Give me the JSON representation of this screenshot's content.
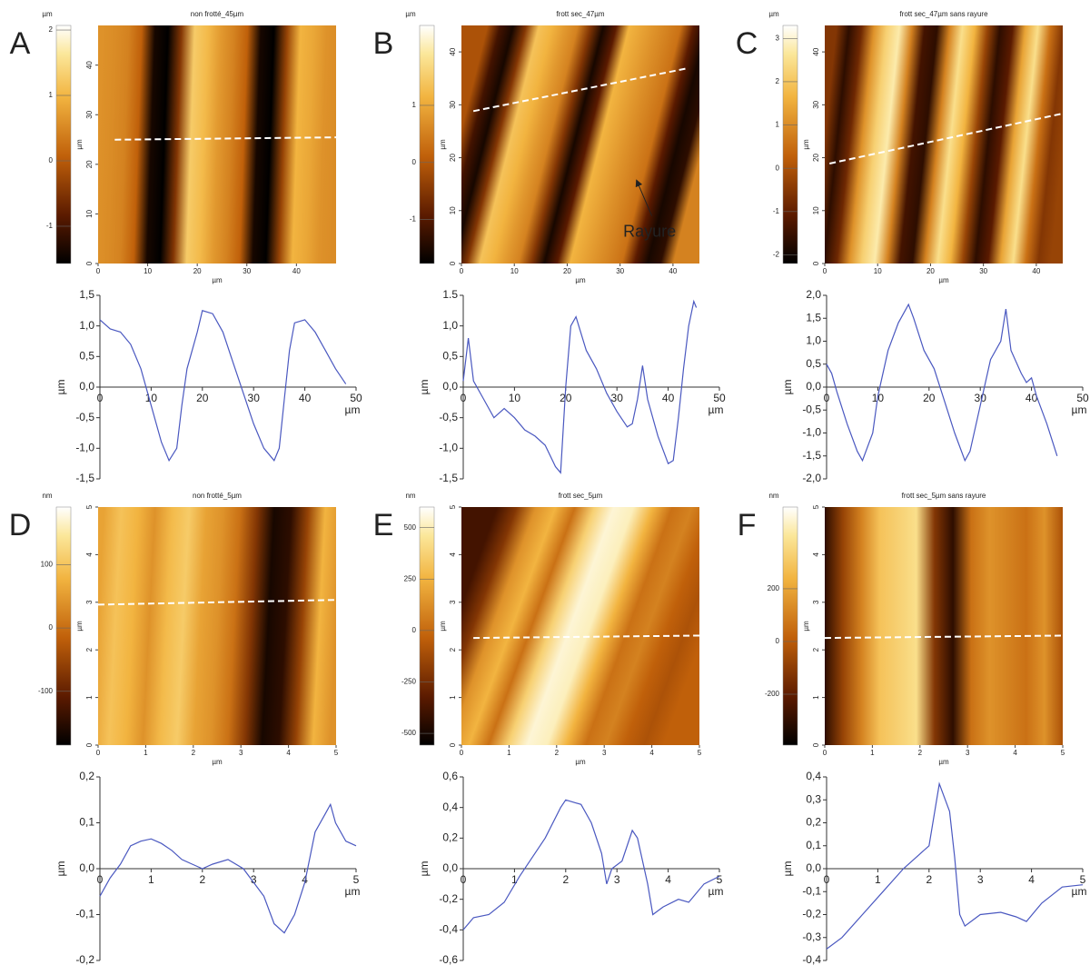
{
  "chart_data": [
    {
      "type": "image",
      "label": "A",
      "title": "non frotté_45µm",
      "unit": "µm",
      "clim": [
        -1.57,
        2.07
      ],
      "cticks": [
        2,
        1,
        0,
        -1
      ],
      "xlim": [
        0,
        48
      ],
      "ylim": [
        0,
        48
      ],
      "xticks": [
        0,
        10,
        20,
        30,
        40
      ],
      "yticks": [
        0,
        10,
        20,
        30,
        40
      ],
      "xlabel": "µm",
      "ylabel": "µm"
    },
    {
      "type": "line",
      "xlim": [
        0,
        50
      ],
      "ylim": [
        -1.5,
        1.5
      ],
      "xticks": [
        0,
        10,
        20,
        30,
        40,
        50
      ],
      "yticks": [
        {
          "value": 1.5,
          "label": "1,5"
        },
        {
          "value": 1.0,
          "label": "1,0"
        },
        {
          "value": 0.5,
          "label": "0,5"
        },
        {
          "value": 0.0,
          "label": "0,0"
        },
        {
          "value": -0.5,
          "label": "-0,5"
        },
        {
          "value": -1.0,
          "label": "-1,0"
        },
        {
          "value": -1.5,
          "label": "-1,5"
        }
      ],
      "xlabel": "µm",
      "ylabel": "µm",
      "x": [
        0,
        2,
        4,
        6,
        8,
        10,
        12,
        13.5,
        15,
        16,
        17,
        19,
        20,
        22,
        24,
        26,
        28,
        30,
        32,
        34,
        35,
        36,
        37,
        38,
        40,
        42,
        44,
        46,
        48
      ],
      "series": [
        {
          "color": "#4a58c0",
          "values": [
            1.1,
            0.95,
            0.9,
            0.7,
            0.3,
            -0.3,
            -0.9,
            -1.2,
            -1.0,
            -0.3,
            0.3,
            0.9,
            1.25,
            1.2,
            0.9,
            0.4,
            -0.1,
            -0.6,
            -1.0,
            -1.2,
            -1.0,
            -0.2,
            0.6,
            1.05,
            1.1,
            0.9,
            0.6,
            0.3,
            0.05
          ]
        }
      ]
    },
    {
      "type": "image",
      "label": "B",
      "title": "frott sec_47µm",
      "unit": "µm",
      "clim": [
        -1.77,
        2.4
      ],
      "cticks": [
        1,
        0,
        -1
      ],
      "xlim": [
        0,
        45
      ],
      "ylim": [
        0,
        45
      ],
      "xticks": [
        0,
        10,
        20,
        30,
        40
      ],
      "yticks": [
        0,
        10,
        20,
        30,
        40
      ],
      "xlabel": "µm",
      "ylabel": "µm",
      "annotation": "Rayure"
    },
    {
      "type": "line",
      "xlim": [
        0,
        50
      ],
      "ylim": [
        -1.5,
        1.5
      ],
      "xticks": [
        0,
        10,
        20,
        30,
        40,
        50
      ],
      "yticks": [
        {
          "value": 1.5,
          "label": "1.5"
        },
        {
          "value": 1.0,
          "label": "1,0"
        },
        {
          "value": 0.5,
          "label": "0,5"
        },
        {
          "value": 0.0,
          "label": "0,0"
        },
        {
          "value": -0.5,
          "label": "-0,5"
        },
        {
          "value": -1.0,
          "label": "-1,0"
        },
        {
          "value": -1.5,
          "label": "-1,5"
        }
      ],
      "xlabel": "µm",
      "ylabel": "µm",
      "x": [
        0,
        1,
        2,
        4,
        6,
        8,
        10,
        12,
        14,
        16,
        18,
        19,
        20,
        21,
        22,
        24,
        26,
        28,
        30,
        32,
        33,
        34,
        35,
        36,
        38,
        40,
        41,
        42,
        43,
        44,
        45,
        45.5
      ],
      "series": [
        {
          "color": "#4a58c0",
          "values": [
            0.1,
            0.8,
            0.1,
            -0.2,
            -0.5,
            -0.35,
            -0.5,
            -0.7,
            -0.8,
            -0.95,
            -1.3,
            -1.4,
            0,
            1.0,
            1.15,
            0.6,
            0.3,
            -0.1,
            -0.4,
            -0.65,
            -0.6,
            -0.2,
            0.35,
            -0.2,
            -0.8,
            -1.25,
            -1.2,
            -0.5,
            0.3,
            1.0,
            1.4,
            1.3
          ]
        }
      ]
    },
    {
      "type": "image",
      "label": "C",
      "title": "frott sec_47µm sans rayure",
      "unit": "µm",
      "clim": [
        -2.2,
        3.3
      ],
      "cticks": [
        3,
        2,
        1,
        0,
        -1,
        -2
      ],
      "xlim": [
        0,
        45
      ],
      "ylim": [
        0,
        45
      ],
      "xticks": [
        0,
        10,
        20,
        30,
        40
      ],
      "yticks": [
        0,
        10,
        20,
        30,
        40
      ],
      "xlabel": "µm",
      "ylabel": "µm"
    },
    {
      "type": "line",
      "xlim": [
        0,
        50
      ],
      "ylim": [
        -2.0,
        2.0
      ],
      "xticks": [
        0,
        10,
        20,
        30,
        40,
        50
      ],
      "yticks": [
        {
          "value": 2.0,
          "label": "2,0"
        },
        {
          "value": 1.5,
          "label": "1,5"
        },
        {
          "value": 1.0,
          "label": "1,0"
        },
        {
          "value": 0.5,
          "label": "0,5"
        },
        {
          "value": 0.0,
          "label": "0,0"
        },
        {
          "value": -0.5,
          "label": "-0,5"
        },
        {
          "value": -1.0,
          "label": "-1,0"
        },
        {
          "value": -1.5,
          "label": "-1,5"
        },
        {
          "value": -2.0,
          "label": "-2,0"
        }
      ],
      "xlabel": "µm",
      "ylabel": "µm",
      "x": [
        0,
        1,
        2,
        4,
        6,
        7,
        9,
        10,
        12,
        14,
        16,
        17,
        19,
        21,
        23,
        25,
        27,
        28,
        30,
        32,
        34,
        35,
        36,
        38,
        39,
        40,
        41,
        43,
        45
      ],
      "series": [
        {
          "color": "#4a58c0",
          "values": [
            0.5,
            0.3,
            -0.1,
            -0.8,
            -1.4,
            -1.6,
            -1.0,
            -0.2,
            0.8,
            1.4,
            1.8,
            1.5,
            0.8,
            0.4,
            -0.3,
            -1.0,
            -1.6,
            -1.4,
            -0.4,
            0.6,
            1.0,
            1.7,
            0.8,
            0.3,
            0.1,
            0.2,
            -0.2,
            -0.8,
            -1.5
          ]
        }
      ]
    },
    {
      "type": "image",
      "label": "D",
      "title": "non frotté_5µm",
      "unit": "nm",
      "clim": [
        -185,
        191
      ],
      "cticks": [
        100,
        0,
        -100
      ],
      "xlim": [
        0,
        5
      ],
      "ylim": [
        0,
        5
      ],
      "xticks": [
        0,
        1,
        2,
        3,
        4,
        5
      ],
      "yticks": [
        0,
        1,
        2,
        3,
        4,
        5
      ],
      "xlabel": "µm",
      "ylabel": "µm"
    },
    {
      "type": "line",
      "xlim": [
        0,
        5
      ],
      "ylim": [
        -0.2,
        0.2
      ],
      "xticks": [
        0,
        1,
        2,
        3,
        4,
        5
      ],
      "yticks": [
        {
          "value": 0.2,
          "label": "0,2"
        },
        {
          "value": 0.1,
          "label": "0,1"
        },
        {
          "value": 0.0,
          "label": "0,0"
        },
        {
          "value": -0.1,
          "label": "-0,1"
        },
        {
          "value": -0.2,
          "label": "-0,2"
        }
      ],
      "xlabel": "µm",
      "ylabel": "µm",
      "x": [
        0,
        0.2,
        0.4,
        0.6,
        0.8,
        1.0,
        1.2,
        1.4,
        1.6,
        1.8,
        2.0,
        2.2,
        2.5,
        2.8,
        3.0,
        3.2,
        3.4,
        3.6,
        3.8,
        4.0,
        4.2,
        4.4,
        4.5,
        4.6,
        4.8,
        5.0
      ],
      "series": [
        {
          "color": "#4a58c0",
          "values": [
            -0.06,
            -0.02,
            0.01,
            0.05,
            0.06,
            0.065,
            0.055,
            0.04,
            0.02,
            0.01,
            0,
            0.01,
            0.02,
            0.0,
            -0.03,
            -0.06,
            -0.12,
            -0.14,
            -0.1,
            -0.03,
            0.08,
            0.12,
            0.14,
            0.1,
            0.06,
            0.05
          ]
        }
      ]
    },
    {
      "type": "image",
      "label": "E",
      "title": "frott sec_5µm",
      "unit": "nm",
      "clim": [
        -557,
        600
      ],
      "cticks": [
        500,
        250,
        0,
        -250,
        -500
      ],
      "xlim": [
        0,
        5
      ],
      "ylim": [
        0,
        5
      ],
      "xticks": [
        0,
        1,
        2,
        3,
        4,
        5
      ],
      "yticks": [
        0,
        1,
        2,
        3,
        4,
        5
      ],
      "xlabel": "µm",
      "ylabel": "µm"
    },
    {
      "type": "line",
      "xlim": [
        0,
        5
      ],
      "ylim": [
        -0.6,
        0.6
      ],
      "xticks": [
        0,
        1,
        2,
        3,
        4,
        5
      ],
      "yticks": [
        {
          "value": 0.6,
          "label": "0,6"
        },
        {
          "value": 0.4,
          "label": "0,4"
        },
        {
          "value": 0.2,
          "label": "0,2"
        },
        {
          "value": 0.0,
          "label": "0,0"
        },
        {
          "value": -0.2,
          "label": "-0,2"
        },
        {
          "value": -0.4,
          "label": "-0,4"
        },
        {
          "value": -0.6,
          "label": "-0,6"
        }
      ],
      "xlabel": "µm",
      "ylabel": "µm",
      "x": [
        0,
        0.2,
        0.5,
        0.8,
        1.1,
        1.3,
        1.6,
        1.9,
        2.0,
        2.3,
        2.5,
        2.7,
        2.8,
        2.9,
        3.1,
        3.3,
        3.4,
        3.6,
        3.7,
        3.9,
        4.2,
        4.4,
        4.7,
        5.0
      ],
      "series": [
        {
          "color": "#4a58c0",
          "values": [
            -0.4,
            -0.32,
            -0.3,
            -0.22,
            -0.05,
            0.05,
            0.2,
            0.4,
            0.45,
            0.42,
            0.3,
            0.1,
            -0.1,
            0.0,
            0.05,
            0.25,
            0.2,
            -0.1,
            -0.3,
            -0.25,
            -0.2,
            -0.22,
            -0.1,
            -0.05
          ]
        }
      ]
    },
    {
      "type": "image",
      "label": "F",
      "title": "frott sec_5µm sans rayure",
      "unit": "nm",
      "clim": [
        -393,
        510
      ],
      "cticks": [
        200,
        0,
        -200
      ],
      "xlim": [
        0,
        5
      ],
      "ylim": [
        0,
        5
      ],
      "xticks": [
        0,
        1,
        2,
        3,
        4,
        5
      ],
      "yticks": [
        0,
        1,
        2,
        3,
        4,
        5
      ],
      "xlabel": "µm",
      "ylabel": "µm"
    },
    {
      "type": "line",
      "xlim": [
        0,
        5
      ],
      "ylim": [
        -0.4,
        0.4
      ],
      "xticks": [
        0,
        1,
        2,
        3,
        4,
        5
      ],
      "yticks": [
        {
          "value": 0.4,
          "label": "0,4"
        },
        {
          "value": 0.3,
          "label": "0,3"
        },
        {
          "value": 0.2,
          "label": "0,2"
        },
        {
          "value": 0.1,
          "label": "0,1"
        },
        {
          "value": 0.0,
          "label": "0,0"
        },
        {
          "value": -0.1,
          "label": "-0,1"
        },
        {
          "value": -0.2,
          "label": "-0,2"
        },
        {
          "value": -0.3,
          "label": "-0,3"
        },
        {
          "value": -0.4,
          "label": "-0,4"
        }
      ],
      "xlabel": "µm",
      "ylabel": "µm",
      "x": [
        0,
        0.3,
        0.7,
        1.1,
        1.5,
        1.8,
        2.0,
        2.2,
        2.4,
        2.5,
        2.6,
        2.7,
        3.0,
        3.4,
        3.7,
        3.9,
        4.2,
        4.6,
        5.0
      ],
      "series": [
        {
          "color": "#4a58c0",
          "values": [
            -0.35,
            -0.3,
            -0.2,
            -0.1,
            0.0,
            0.06,
            0.1,
            0.37,
            0.25,
            0.05,
            -0.2,
            -0.25,
            -0.2,
            -0.19,
            -0.21,
            -0.23,
            -0.15,
            -0.08,
            -0.07
          ]
        }
      ]
    }
  ]
}
